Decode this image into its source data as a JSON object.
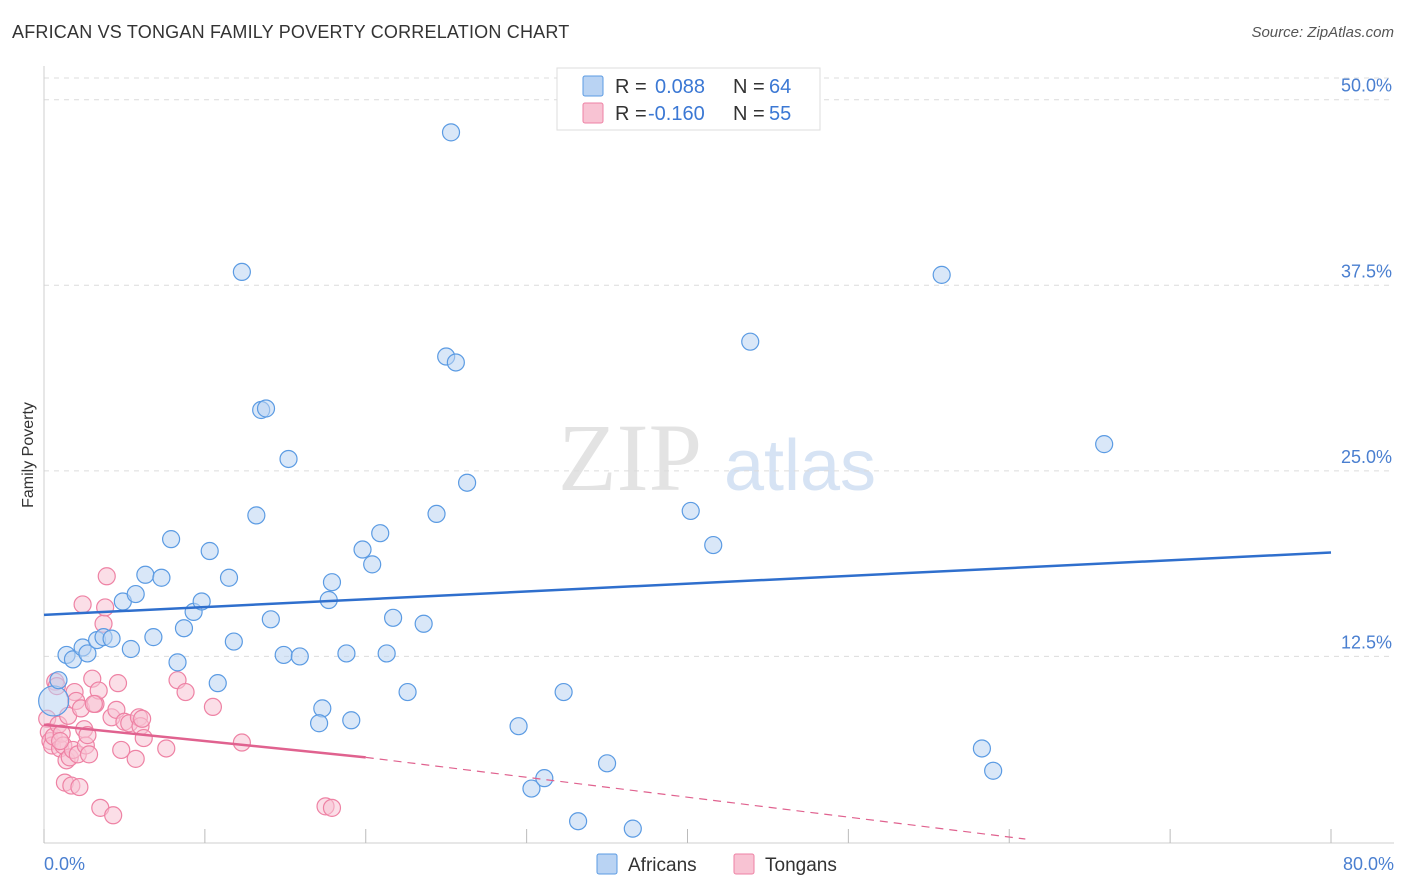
{
  "title": "AFRICAN VS TONGAN FAMILY POVERTY CORRELATION CHART",
  "source": "Source: ZipAtlas.com",
  "watermark": {
    "zip": "ZIP",
    "atlas": "atlas"
  },
  "colors": {
    "africans": "#5b9be3",
    "africans_fill": "#b9d3f3",
    "africans_line": "#2f6fcd",
    "tongans": "#ee82a4",
    "tongans_fill": "#f8c3d3",
    "tongans_line": "#e0628f",
    "tick_text": "#4a7fd0"
  },
  "legend": {
    "rows": [
      {
        "r_label": "R =",
        "r_value": "0.088",
        "n_label": "N =",
        "n_value": "64"
      },
      {
        "r_label": "R =",
        "r_value": "-0.160",
        "n_label": "N =",
        "n_value": "55"
      }
    ]
  },
  "chart_data": {
    "type": "scatter",
    "title": "AFRICAN VS TONGAN FAMILY POVERTY CORRELATION CHART",
    "xlabel": "",
    "ylabel": "Family Poverty",
    "xlim": [
      0,
      80
    ],
    "ylim": [
      0,
      52
    ],
    "x_tick_labels": [
      "0.0%",
      "80.0%"
    ],
    "y_ticks": [
      12.5,
      25.0,
      37.5,
      50.0
    ],
    "y_tick_labels": [
      "12.5%",
      "25.0%",
      "37.5%",
      "50.0%"
    ],
    "series": [
      {
        "name": "Africans",
        "trend": {
          "x": [
            0,
            80
          ],
          "y": [
            15.3,
            19.5
          ],
          "dashed_ext": null
        },
        "points": [
          [
            0.6,
            9.5
          ],
          [
            0.9,
            10.9
          ],
          [
            1.4,
            12.6
          ],
          [
            1.8,
            12.3
          ],
          [
            2.4,
            13.1
          ],
          [
            2.7,
            12.7
          ],
          [
            3.3,
            13.6
          ],
          [
            3.7,
            13.8
          ],
          [
            4.2,
            13.7
          ],
          [
            4.9,
            16.2
          ],
          [
            5.4,
            13.0
          ],
          [
            5.7,
            16.7
          ],
          [
            6.3,
            18.0
          ],
          [
            6.8,
            13.8
          ],
          [
            7.3,
            17.8
          ],
          [
            7.9,
            20.4
          ],
          [
            8.3,
            12.1
          ],
          [
            8.7,
            14.4
          ],
          [
            9.3,
            15.5
          ],
          [
            9.8,
            16.2
          ],
          [
            10.3,
            19.6
          ],
          [
            10.8,
            10.7
          ],
          [
            11.5,
            17.8
          ],
          [
            11.8,
            13.5
          ],
          [
            12.3,
            38.4
          ],
          [
            13.2,
            22.0
          ],
          [
            13.5,
            29.1
          ],
          [
            13.8,
            29.2
          ],
          [
            14.1,
            15.0
          ],
          [
            14.9,
            12.6
          ],
          [
            15.2,
            25.8
          ],
          [
            15.9,
            12.5
          ],
          [
            17.3,
            9.0
          ],
          [
            17.1,
            8.0
          ],
          [
            17.7,
            16.3
          ],
          [
            17.9,
            17.5
          ],
          [
            18.8,
            12.7
          ],
          [
            19.1,
            8.2
          ],
          [
            19.8,
            19.7
          ],
          [
            20.4,
            18.7
          ],
          [
            20.9,
            20.8
          ],
          [
            21.3,
            12.7
          ],
          [
            21.7,
            15.1
          ],
          [
            22.6,
            10.1
          ],
          [
            23.6,
            14.7
          ],
          [
            24.4,
            22.1
          ],
          [
            25.0,
            32.7
          ],
          [
            25.3,
            47.8
          ],
          [
            25.6,
            32.3
          ],
          [
            26.3,
            24.2
          ],
          [
            29.5,
            7.8
          ],
          [
            30.3,
            3.6
          ],
          [
            31.1,
            4.3
          ],
          [
            32.3,
            10.1
          ],
          [
            33.2,
            1.4
          ],
          [
            35.0,
            5.3
          ],
          [
            36.6,
            0.9
          ],
          [
            40.2,
            22.3
          ],
          [
            41.6,
            20.0
          ],
          [
            43.9,
            33.7
          ],
          [
            55.8,
            38.2
          ],
          [
            58.3,
            6.3
          ],
          [
            59.0,
            4.8
          ],
          [
            65.9,
            26.8
          ]
        ]
      },
      {
        "name": "Tongans",
        "trend": {
          "x": [
            0,
            20
          ],
          "y": [
            7.9,
            5.7
          ],
          "dashed_ext": {
            "x": [
              20,
              61
            ],
            "y": [
              5.7,
              0.2
            ]
          }
        },
        "points": [
          [
            0.2,
            8.3
          ],
          [
            0.3,
            7.4
          ],
          [
            0.4,
            6.8
          ],
          [
            0.5,
            6.5
          ],
          [
            0.6,
            7.1
          ],
          [
            0.7,
            10.8
          ],
          [
            0.9,
            7.9
          ],
          [
            1.0,
            6.3
          ],
          [
            1.1,
            7.3
          ],
          [
            1.2,
            6.5
          ],
          [
            1.3,
            4.0
          ],
          [
            1.4,
            5.5
          ],
          [
            1.5,
            8.5
          ],
          [
            1.6,
            5.7
          ],
          [
            1.7,
            3.8
          ],
          [
            1.8,
            6.2
          ],
          [
            1.9,
            10.1
          ],
          [
            2.0,
            9.5
          ],
          [
            2.1,
            5.9
          ],
          [
            2.2,
            3.7
          ],
          [
            2.3,
            9.0
          ],
          [
            2.5,
            7.6
          ],
          [
            2.6,
            6.5
          ],
          [
            2.7,
            7.2
          ],
          [
            2.8,
            5.9
          ],
          [
            3.0,
            11.0
          ],
          [
            3.2,
            9.3
          ],
          [
            3.4,
            10.2
          ],
          [
            3.5,
            2.3
          ],
          [
            3.7,
            14.7
          ],
          [
            3.8,
            15.8
          ],
          [
            3.9,
            17.9
          ],
          [
            4.2,
            8.4
          ],
          [
            4.3,
            1.8
          ],
          [
            4.5,
            8.9
          ],
          [
            4.6,
            10.7
          ],
          [
            4.8,
            6.2
          ],
          [
            5.0,
            8.1
          ],
          [
            5.3,
            8.0
          ],
          [
            5.7,
            5.6
          ],
          [
            5.9,
            8.4
          ],
          [
            6.0,
            7.8
          ],
          [
            6.2,
            7.0
          ],
          [
            7.6,
            6.3
          ],
          [
            8.3,
            10.9
          ],
          [
            8.8,
            10.1
          ],
          [
            10.5,
            9.1
          ],
          [
            12.3,
            6.7
          ],
          [
            17.5,
            2.4
          ],
          [
            17.9,
            2.3
          ],
          [
            6.1,
            8.3
          ],
          [
            2.4,
            16.0
          ],
          [
            0.8,
            10.5
          ],
          [
            1.0,
            6.8
          ],
          [
            3.1,
            9.3
          ]
        ]
      }
    ],
    "legend_entries": [
      "Africans",
      "Tongans"
    ]
  }
}
